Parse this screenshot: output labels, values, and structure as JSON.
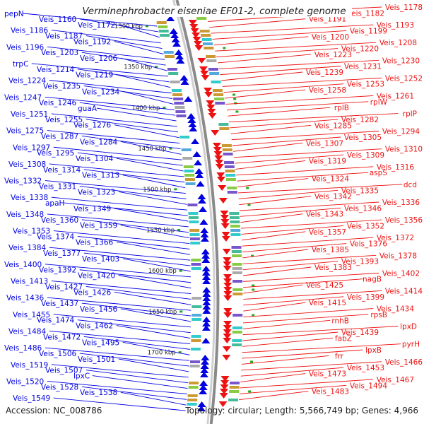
{
  "title": "Verminephrobacter eiseniae EF01-2, complete genome",
  "accession": "Accession: NC_008786",
  "topology": "Topology: circular; Length: 5,566,749 bp; Genes: 4,966",
  "colors": {
    "forward": "#0000e0",
    "reverse": "#ee1111",
    "backbone": "#8a8a8a",
    "ticks": "#22aa22"
  },
  "ticks": [
    "1300 kbp",
    "1350 kbp",
    "1400 kbp",
    "1450 kbp",
    "1500 kbp",
    "1550 kbp",
    "1600 kbp",
    "1650 kbp",
    "1700 kbp"
  ],
  "left_labels": [
    "pepN",
    "Veis_1160",
    "Veis_1172",
    "Veis_1186",
    "Veis_1187",
    "Veis_1192",
    "Veis_1196",
    "Veis_1203",
    "Veis_1206",
    "trpC",
    "Veis_1214",
    "Veis_1219",
    "Veis_1224",
    "Veis_1235",
    "Veis_1234",
    "Veis_1247",
    "Veis_1246",
    "guaA",
    "Veis_1251",
    "Veis_1255",
    "Veis_1276",
    "Veis_1275",
    "Veis_1287",
    "Veis_1284",
    "Veis_1297",
    "Veis_1295",
    "Veis_1304",
    "Veis_1308",
    "Veis_1314",
    "Veis_1313",
    "Veis_1332",
    "Veis_1331",
    "Veis_1323",
    "Veis_1338",
    "apaH",
    "Veis_1349",
    "Veis_1348",
    "Veis_1360",
    "Veis_1359",
    "Veis_1353",
    "Veis_1374",
    "Veis_1366",
    "Veis_1384",
    "Veis_1377",
    "Veis_1403",
    "Veis_1400",
    "Veis_1392",
    "Veis_1420",
    "Veis_1413",
    "Veis_1427",
    "Veis_1426",
    "Veis_1436",
    "Veis_1437",
    "Veis_1456",
    "Veis_1455",
    "Veis_1474",
    "Veis_1462",
    "Veis_1484",
    "Veis_1472",
    "Veis_1495",
    "Veis_1486",
    "Veis_1506",
    "Veis_1501",
    "Veis_1519",
    "Veis_1507",
    "lpxC",
    "Veis_1520",
    "Veis_1528",
    "Veis_1538",
    "Veis_1549"
  ],
  "right_labels": [
    "Veis_1178",
    "Veis_1182",
    "Veis_1191",
    "Veis_1193",
    "Veis_1199",
    "Veis_1200",
    "Veis_1208",
    "Veis_1220",
    "Veis_1223",
    "Veis_1230",
    "Veis_1231",
    "Veis_1239",
    "Veis_1252",
    "Veis_1253",
    "Veis_1258",
    "Veis_1261",
    "rplW",
    "rplB",
    "rplP",
    "Veis_1282",
    "Veis_1285",
    "Veis_1294",
    "Veis_1305",
    "Veis_1307",
    "Veis_1310",
    "Veis_1309",
    "Veis_1319",
    "Veis_1316",
    "aspS",
    "Veis_1324",
    "dcd",
    "Veis_1335",
    "Veis_1342",
    "Veis_1336",
    "Veis_1346",
    "Veis_1343",
    "Veis_1356",
    "Veis_1352",
    "Veis_1357",
    "Veis_1372",
    "Veis_1376",
    "Veis_1385",
    "Veis_1378",
    "Veis_1393",
    "Veis_1383",
    "Veis_1402",
    "nagB",
    "Veis_1425",
    "Veis_1414",
    "Veis_1399",
    "Veis_1415",
    "Veis_1434",
    "rpsB",
    "rnhB",
    "lpxD",
    "Veis_1439",
    "fabZ",
    "pyrH",
    "lpxB",
    "frr",
    "Veis_1466",
    "Veis_1453",
    "Veis_1473",
    "Veis_1467",
    "Veis_1494",
    "Veis_1483"
  ]
}
